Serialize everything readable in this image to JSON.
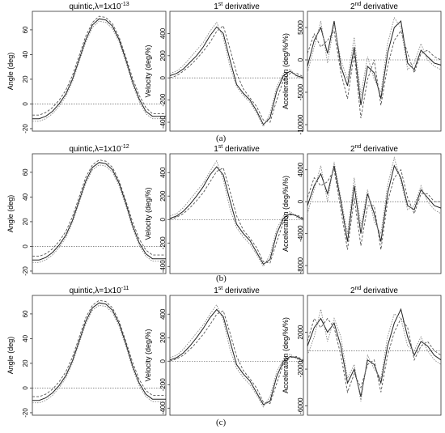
{
  "chart_data": [
    {
      "type": "line",
      "row": "a",
      "col": "angle",
      "title": "quintic,λ=1x10",
      "title_sup": "-13",
      "ylabel": "Angle (deg)",
      "yticks": [
        -20,
        0,
        20,
        40,
        60
      ],
      "ylim": [
        -22,
        75
      ],
      "xlim": [
        0,
        100
      ],
      "reference_line": 0,
      "series": [
        {
          "values": [
            -12,
            -12,
            -10,
            -6,
            0,
            8,
            20,
            36,
            52,
            64,
            69,
            68,
            63,
            52,
            36,
            18,
            4,
            -6,
            -10,
            -10,
            -10
          ]
        },
        {
          "values": [
            -9,
            -9,
            -7,
            -3,
            3,
            11,
            23,
            39,
            55,
            66,
            71,
            70,
            65,
            54,
            38,
            21,
            7,
            -3,
            -8,
            -8,
            -8
          ]
        },
        {
          "values": [
            -14,
            -14,
            -12,
            -8,
            -2,
            6,
            18,
            34,
            50,
            62,
            67,
            66,
            61,
            50,
            34,
            16,
            2,
            -8,
            -12,
            -12,
            -12
          ]
        }
      ]
    },
    {
      "type": "line",
      "row": "a",
      "col": "velocity",
      "title": "1",
      "title_sup": "st",
      "title_rest": " derivative",
      "ylabel": "Velocity (deg/%)",
      "yticks": [
        -400,
        -200,
        0,
        200,
        400
      ],
      "ylim": [
        -480,
        600
      ],
      "xlim": [
        0,
        100
      ],
      "reference_line": 0,
      "series": [
        {
          "values": [
            20,
            40,
            80,
            140,
            200,
            280,
            380,
            460,
            400,
            160,
            -60,
            -140,
            -200,
            -300,
            -420,
            -360,
            -120,
            20,
            60,
            20,
            0
          ]
        },
        {
          "values": [
            0,
            20,
            60,
            110,
            170,
            240,
            320,
            420,
            470,
            260,
            40,
            -100,
            -180,
            -260,
            -380,
            -400,
            -200,
            -20,
            40,
            40,
            10
          ]
        },
        {
          "values": [
            40,
            60,
            110,
            180,
            250,
            320,
            420,
            500,
            360,
            100,
            -80,
            -160,
            -220,
            -320,
            -440,
            -320,
            -80,
            40,
            80,
            10,
            -10
          ]
        }
      ]
    },
    {
      "type": "line",
      "row": "a",
      "col": "acceleration",
      "title": "2",
      "title_sup": "nd",
      "title_rest": " derivative",
      "ylabel": "Acceleration (deg/%/%)",
      "yticks": [
        -10000,
        -5000,
        0,
        5000
      ],
      "ylim": [
        -11000,
        7500
      ],
      "xlim": [
        0,
        100
      ],
      "reference_line": 0,
      "series": [
        {
          "values": [
            -1000,
            3000,
            5000,
            1000,
            6000,
            -1000,
            -4000,
            2000,
            -7000,
            -1000,
            -2000,
            -6000,
            1000,
            5000,
            6000,
            -500,
            -1500,
            1500,
            500,
            -500,
            -800
          ]
        },
        {
          "values": [
            1000,
            4000,
            2000,
            3000,
            4500,
            -2000,
            -6000,
            1000,
            -9000,
            -3000,
            0,
            -7000,
            -1000,
            3000,
            4500,
            1000,
            -2000,
            1000,
            1500,
            500,
            0
          ]
        },
        {
          "values": [
            -2000,
            2000,
            6000,
            -500,
            5500,
            0,
            -3000,
            3500,
            -5500,
            500,
            -3000,
            -5000,
            2500,
            6500,
            5000,
            -1500,
            -500,
            2500,
            0,
            -1000,
            -1500
          ]
        }
      ]
    },
    {
      "type": "line",
      "row": "b",
      "col": "angle",
      "title": "quintic,λ=1x10",
      "title_sup": "-12",
      "ylabel": "Angle (deg)",
      "yticks": [
        -20,
        0,
        20,
        40,
        60
      ],
      "ylim": [
        -22,
        75
      ],
      "xlim": [
        0,
        100
      ],
      "reference_line": 0,
      "series": [
        {
          "values": [
            -11,
            -11,
            -9,
            -5,
            1,
            9,
            21,
            37,
            53,
            64,
            68,
            67,
            62,
            51,
            35,
            17,
            3,
            -6,
            -10,
            -10,
            -10
          ]
        },
        {
          "values": [
            -8,
            -8,
            -6,
            -2,
            4,
            12,
            24,
            40,
            56,
            66,
            70,
            69,
            64,
            53,
            37,
            20,
            6,
            -3,
            -7,
            -7,
            -7
          ]
        },
        {
          "values": [
            -13,
            -13,
            -11,
            -7,
            -1,
            7,
            19,
            35,
            51,
            62,
            66,
            65,
            60,
            49,
            33,
            15,
            1,
            -8,
            -12,
            -12,
            -12
          ]
        }
      ]
    },
    {
      "type": "line",
      "row": "b",
      "col": "velocity",
      "title": "1",
      "title_sup": "st",
      "title_rest": " derivative",
      "ylabel": "Velocity (deg/%)",
      "yticks": [
        -400,
        -200,
        0,
        200,
        400
      ],
      "ylim": [
        -460,
        560
      ],
      "xlim": [
        0,
        100
      ],
      "reference_line": 0,
      "series": [
        {
          "values": [
            10,
            30,
            70,
            130,
            200,
            280,
            380,
            450,
            380,
            160,
            -40,
            -120,
            -180,
            -280,
            -380,
            -340,
            -120,
            10,
            50,
            30,
            0
          ]
        },
        {
          "values": [
            0,
            20,
            50,
            100,
            160,
            230,
            320,
            410,
            440,
            240,
            30,
            -90,
            -160,
            -240,
            -360,
            -370,
            -190,
            -20,
            40,
            40,
            10
          ]
        },
        {
          "values": [
            30,
            50,
            100,
            170,
            240,
            310,
            410,
            500,
            340,
            90,
            -70,
            -150,
            -210,
            -300,
            -400,
            -300,
            -80,
            30,
            70,
            20,
            -10
          ]
        }
      ]
    },
    {
      "type": "line",
      "row": "b",
      "col": "acceleration",
      "title": "2",
      "title_sup": "nd",
      "title_rest": " derivative",
      "ylabel": "Acceleration (deg/%/%)",
      "yticks": [
        -8000,
        -4000,
        0,
        4000
      ],
      "ylim": [
        -9000,
        6000
      ],
      "xlim": [
        0,
        100
      ],
      "reference_line": 0,
      "series": [
        {
          "values": [
            -500,
            2000,
            3500,
            1000,
            4500,
            0,
            -5000,
            2000,
            -4000,
            1000,
            -1500,
            -5000,
            1000,
            4500,
            3000,
            -500,
            -1000,
            1500,
            500,
            -500,
            -800
          ]
        },
        {
          "values": [
            500,
            3000,
            2000,
            2500,
            4000,
            -1000,
            -6000,
            500,
            -5500,
            -500,
            -500,
            -6000,
            0,
            3000,
            4000,
            500,
            -1500,
            1000,
            1000,
            0,
            0
          ]
        },
        {
          "values": [
            -1500,
            1500,
            4500,
            0,
            5000,
            500,
            -4000,
            3000,
            -3000,
            1500,
            -2500,
            -4000,
            2000,
            5500,
            2500,
            -1000,
            -500,
            2000,
            0,
            -1000,
            -1500
          ]
        }
      ]
    },
    {
      "type": "line",
      "row": "c",
      "col": "angle",
      "title": "quintic,λ=1x10",
      "title_sup": "-11",
      "ylabel": "Angle (deg)",
      "yticks": [
        -20,
        0,
        20,
        40,
        60
      ],
      "ylim": [
        -22,
        75
      ],
      "xlim": [
        0,
        100
      ],
      "reference_line": 0,
      "series": [
        {
          "values": [
            -10,
            -10,
            -8,
            -4,
            2,
            10,
            22,
            38,
            54,
            65,
            69,
            68,
            63,
            52,
            36,
            18,
            4,
            -5,
            -9,
            -9,
            -9
          ]
        },
        {
          "values": [
            -7,
            -7,
            -5,
            -1,
            5,
            13,
            25,
            41,
            57,
            67,
            71,
            70,
            65,
            54,
            38,
            21,
            7,
            -2,
            -6,
            -6,
            -6
          ]
        },
        {
          "values": [
            -12,
            -12,
            -10,
            -6,
            0,
            8,
            20,
            36,
            52,
            63,
            67,
            66,
            61,
            50,
            34,
            16,
            2,
            -7,
            -11,
            -11,
            -11
          ]
        }
      ]
    },
    {
      "type": "line",
      "row": "c",
      "col": "velocity",
      "title": "1",
      "title_sup": "st",
      "title_rest": " derivative",
      "ylabel": "Velocity (deg/%)",
      "yticks": [
        -400,
        -200,
        0,
        200,
        400
      ],
      "ylim": [
        -460,
        560
      ],
      "xlim": [
        0,
        100
      ],
      "reference_line": 0,
      "series": [
        {
          "values": [
            10,
            30,
            70,
            130,
            200,
            280,
            370,
            440,
            380,
            170,
            -30,
            -110,
            -170,
            -270,
            -370,
            -340,
            -130,
            0,
            40,
            30,
            0
          ]
        },
        {
          "values": [
            0,
            20,
            50,
            100,
            160,
            230,
            310,
            400,
            430,
            240,
            40,
            -80,
            -150,
            -230,
            -350,
            -360,
            -190,
            -20,
            30,
            40,
            10
          ]
        },
        {
          "values": [
            30,
            50,
            100,
            170,
            240,
            310,
            400,
            480,
            350,
            100,
            -60,
            -140,
            -200,
            -290,
            -390,
            -300,
            -90,
            20,
            60,
            20,
            -10
          ]
        }
      ]
    },
    {
      "type": "line",
      "row": "c",
      "col": "acceleration",
      "title": "2",
      "title_sup": "nd",
      "title_rest": " derivative",
      "ylabel": "Acceleration (deg/%/%)",
      "yticks": [
        -6000,
        -2000,
        2000
      ],
      "ylim": [
        -7000,
        6000
      ],
      "xlim": [
        0,
        100
      ],
      "reference_line": 0,
      "series": [
        {
          "values": [
            500,
            2500,
            3500,
            2000,
            3000,
            500,
            -3500,
            -2000,
            -5000,
            -1000,
            -1500,
            -3500,
            500,
            3000,
            4500,
            1500,
            -500,
            1000,
            500,
            -500,
            -1000
          ]
        },
        {
          "values": [
            1000,
            3500,
            2500,
            3500,
            2500,
            -500,
            -4500,
            -2500,
            -4000,
            -1500,
            -1000,
            -4500,
            -500,
            2000,
            3500,
            2500,
            -1000,
            500,
            1000,
            0,
            -500
          ]
        },
        {
          "values": [
            -500,
            1500,
            4500,
            1000,
            3500,
            1500,
            -3000,
            -1500,
            -5500,
            -500,
            -2000,
            -3000,
            1500,
            4000,
            3500,
            500,
            0,
            1500,
            0,
            -1000,
            -1500
          ]
        }
      ]
    }
  ],
  "row_labels": [
    "(a)",
    "(b)",
    "(c)"
  ]
}
